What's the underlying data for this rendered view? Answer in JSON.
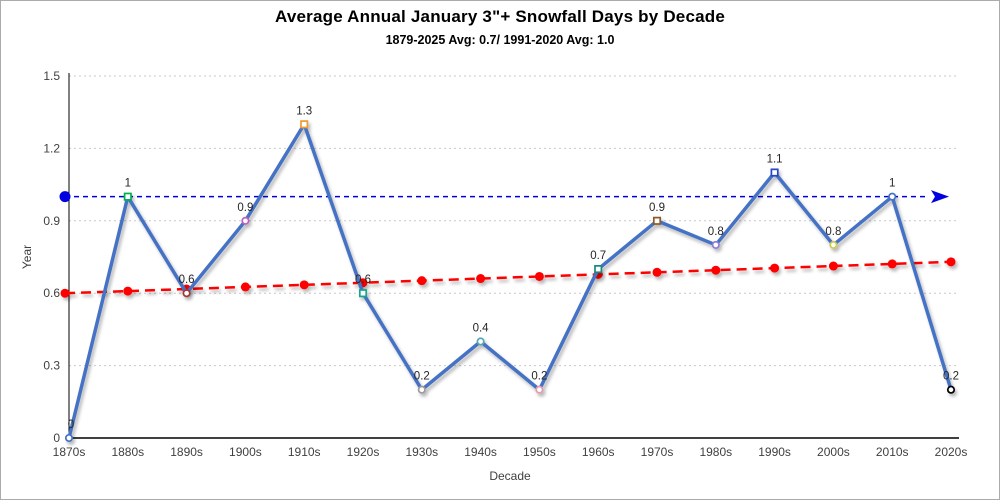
{
  "header": {
    "title": "Average Annual January 3\"+ Snowfall Days by Decade",
    "subtitle": "1879-2025 Avg: 0.7/ 1991-2020 Avg: 1.0"
  },
  "chart_data": {
    "type": "line",
    "title": "Average Annual January 3\"+ Snowfall Days by Decade",
    "subtitle": "1879-2025 Avg: 0.7/ 1991-2020 Avg: 1.0",
    "xlabel": "Decade",
    "ylabel": "Year",
    "ylim": [
      0,
      1.5
    ],
    "yticks": [
      "0",
      "0.3",
      "0.6",
      "0.9",
      "1.2",
      "1.5"
    ],
    "grid": "horizontal-dotted",
    "categories": [
      "1870s",
      "1880s",
      "1890s",
      "1900s",
      "1910s",
      "1920s",
      "1930s",
      "1940s",
      "1950s",
      "1960s",
      "1970s",
      "1980s",
      "1990s",
      "2000s",
      "2010s",
      "2020s"
    ],
    "series": [
      {
        "name": "snowfall-days",
        "type": "line",
        "color": "#4472C4",
        "values": [
          0,
          1,
          0.6,
          0.9,
          1.3,
          0.6,
          0.2,
          0.4,
          0.2,
          0.7,
          0.9,
          0.8,
          1.1,
          0.8,
          1,
          0.2
        ],
        "labels": [
          "0",
          "1",
          "0.6",
          "0.9",
          "1.3",
          "0.6",
          "0.2",
          "0.4",
          "0.2",
          "0.7",
          "0.9",
          "0.8",
          "1.1",
          "0.8",
          "1",
          "0.2"
        ],
        "markers": [
          {
            "shape": "circle",
            "color": "#4472C4"
          },
          {
            "shape": "square",
            "color": "#00B050"
          },
          {
            "shape": "circle",
            "color": "#9E3B33"
          },
          {
            "shape": "circle",
            "color": "#BF5FBF"
          },
          {
            "shape": "square",
            "color": "#ED9B33"
          },
          {
            "shape": "square",
            "color": "#17A589"
          },
          {
            "shape": "circle",
            "color": "#9B9B9B"
          },
          {
            "shape": "circle",
            "color": "#56A7B2"
          },
          {
            "shape": "circle",
            "color": "#E39BB0"
          },
          {
            "shape": "square",
            "color": "#17897B"
          },
          {
            "shape": "square",
            "color": "#8C5A28"
          },
          {
            "shape": "circle",
            "color": "#8E7CD8"
          },
          {
            "shape": "square",
            "color": "#2847C8"
          },
          {
            "shape": "circle",
            "color": "#CDC950"
          },
          {
            "shape": "circle",
            "color": "#4472C4"
          },
          {
            "shape": "circle",
            "color": "#000000"
          }
        ]
      },
      {
        "name": "linear-trend",
        "type": "dashed-line",
        "color": "#FF0000",
        "start": 0.6,
        "end": 0.73,
        "dots": true
      },
      {
        "name": "reference-1991-2020-avg",
        "type": "dashed-line",
        "color": "#0000E0",
        "value": 1.0,
        "arrow_end": true,
        "start_dot": true
      }
    ]
  }
}
